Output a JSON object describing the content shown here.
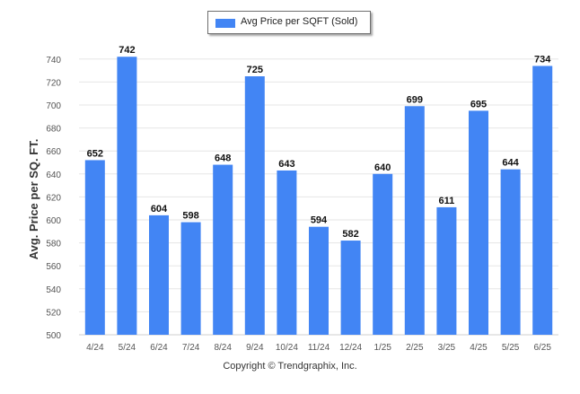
{
  "chart_data": {
    "type": "bar",
    "categories": [
      "4/24",
      "5/24",
      "6/24",
      "7/24",
      "8/24",
      "9/24",
      "10/24",
      "11/24",
      "12/24",
      "1/25",
      "2/25",
      "3/25",
      "4/25",
      "5/25",
      "6/25"
    ],
    "series": [
      {
        "name": "Avg Price per SQFT (Sold)",
        "values": [
          652,
          742,
          604,
          598,
          648,
          725,
          643,
          594,
          582,
          640,
          699,
          611,
          695,
          644,
          734
        ]
      }
    ],
    "ylabel": "Avg. Price per SQ. FT.",
    "xlabel": "",
    "ylim": [
      500,
      750
    ],
    "yticks": [
      500,
      520,
      540,
      560,
      580,
      600,
      620,
      640,
      660,
      680,
      700,
      720,
      740
    ],
    "grid": true,
    "legend_position": "top-center",
    "data_labels": true
  },
  "colors": {
    "bar": "#4285f4",
    "grid": "#e6e6e6",
    "axis_text": "#555555",
    "label_text": "#111111"
  },
  "footer": {
    "copyright": "Copyright © Trendgraphix, Inc."
  }
}
